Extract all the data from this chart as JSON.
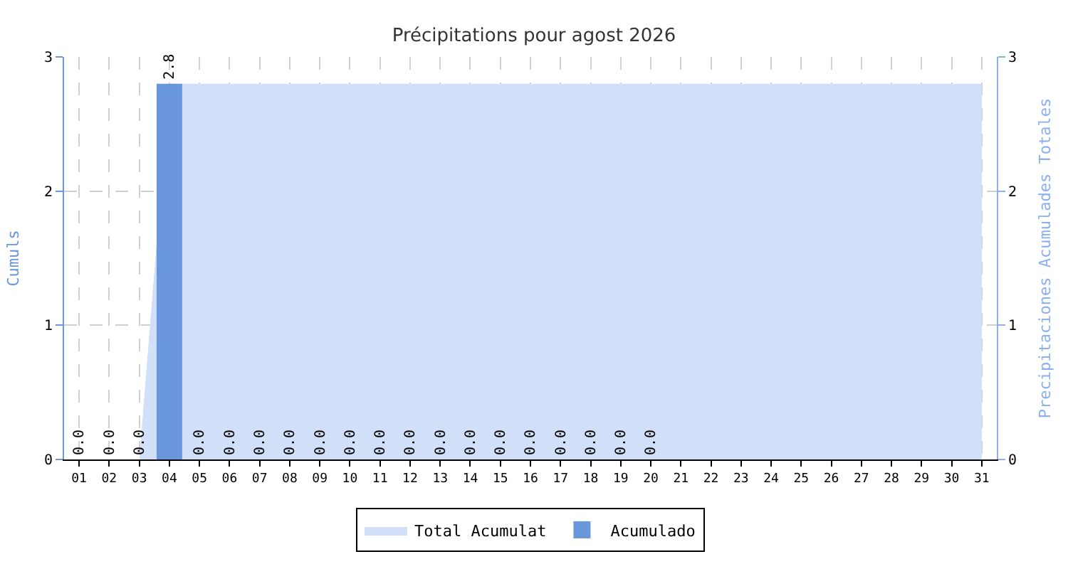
{
  "chart_data": {
    "type": "bar",
    "title": "Précipitations pour agost 2026",
    "ylabel": "Cumuls",
    "y2label": "Precipitaciones Acumulades Totales",
    "categories": [
      "01",
      "02",
      "03",
      "04",
      "05",
      "06",
      "07",
      "08",
      "09",
      "10",
      "11",
      "12",
      "13",
      "14",
      "15",
      "16",
      "17",
      "18",
      "19",
      "20",
      "21",
      "22",
      "23",
      "24",
      "25",
      "26",
      "27",
      "28",
      "29",
      "30",
      "31"
    ],
    "series": [
      {
        "name": "Total Acumulat",
        "type": "area",
        "color": "#d2dff8",
        "values": [
          0,
          0,
          0,
          2.8,
          2.8,
          2.8,
          2.8,
          2.8,
          2.8,
          2.8,
          2.8,
          2.8,
          2.8,
          2.8,
          2.8,
          2.8,
          2.8,
          2.8,
          2.8,
          2.8,
          2.8,
          2.8,
          2.8,
          2.8,
          2.8,
          2.8,
          2.8,
          2.8,
          2.8,
          2.8,
          2.8
        ]
      },
      {
        "name": "Acumulado",
        "axis": "y2",
        "color": "#6a96db",
        "values": [
          0,
          0,
          0,
          2.8,
          0,
          0,
          0,
          0,
          0,
          0,
          0,
          0,
          0,
          0,
          0,
          0,
          0,
          0,
          0,
          0,
          null,
          null,
          null,
          null,
          null,
          null,
          null,
          null,
          null,
          null,
          null
        ],
        "value_labels": [
          "0.0",
          "0.0",
          "0.0",
          "2.8",
          "0.0",
          "0.0",
          "0.0",
          "0.0",
          "0.0",
          "0.0",
          "0.0",
          "0.0",
          "0.0",
          "0.0",
          "0.0",
          "0.0",
          "0.0",
          "0.0",
          "0.0",
          "0.0",
          null,
          null,
          null,
          null,
          null,
          null,
          null,
          null,
          null,
          null,
          null
        ]
      }
    ],
    "ylim": [
      0,
      3
    ],
    "yticks": [
      0,
      1,
      2,
      3
    ],
    "y2lim": [
      0,
      3
    ],
    "y2ticks": [
      0,
      1,
      2,
      3
    ],
    "grid": true,
    "legend": "bottom"
  }
}
